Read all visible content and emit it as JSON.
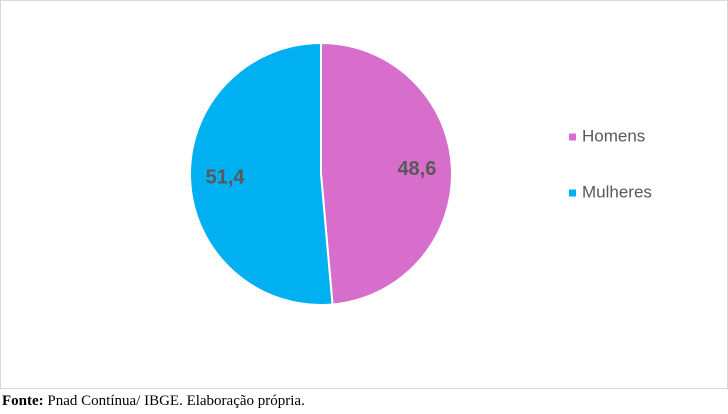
{
  "chart_data": {
    "type": "pie",
    "categories": [
      "Homens",
      "Mulheres"
    ],
    "values": [
      48.6,
      51.4
    ],
    "value_labels": [
      "48,6",
      "51,4"
    ],
    "colors": [
      "#d76ecb",
      "#00b0f0"
    ],
    "legend": "right"
  },
  "source": {
    "label": "Fonte:",
    "text": "Pnad Contínua/ IBGE. Elaboração própria."
  }
}
